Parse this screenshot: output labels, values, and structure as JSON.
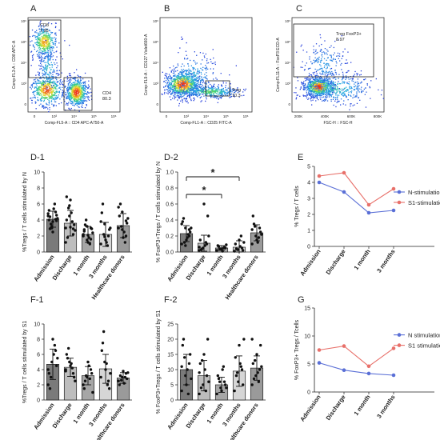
{
  "panels": {
    "A": "A",
    "B": "B",
    "C": "C",
    "D1": "D-1",
    "D2": "D-2",
    "E": "E",
    "F1": "F-1",
    "F2": "F-2",
    "G": "G"
  },
  "flow": {
    "A": {
      "ylabel": "Comp-FL3-A :: CD8 APC-A",
      "xlabel": "Comp-FL5-A :: CD4 APC-A750-A",
      "gates": [
        {
          "name": "CD8",
          "value": "7.95"
        },
        {
          "name": "CD4",
          "value": "80.3"
        }
      ],
      "yticks": [
        "10⁶",
        "10⁵",
        "10⁴",
        "10³",
        "0"
      ],
      "xticks": [
        "0",
        "10³",
        "10⁴",
        "10⁵",
        "10⁶"
      ]
    },
    "B": {
      "ylabel": "Comp-FL9-A :: CD127 Violet660-A",
      "xlabel": "Comp-FL1-A :: CD25 FITC-A",
      "gates": [
        {
          "name": "Treg",
          "value": "10.3"
        }
      ],
      "yticks": [
        "10⁶",
        "10⁵",
        "10⁴",
        "10³",
        "0"
      ],
      "xticks": [
        "0",
        "10³",
        "10⁴",
        "10⁵",
        "10⁶"
      ]
    },
    "C": {
      "ylabel": "Comp-FL11-A :: FoxP3 ECD-A",
      "xlabel": "FSC-H :: FSC-H",
      "gates": [
        {
          "name": "Treg FoxP3+",
          "value": "8.97"
        }
      ],
      "yticks": [
        "10⁶",
        "10⁵",
        "10⁴",
        "10³",
        "0"
      ],
      "xticks": [
        "200K",
        "400K",
        "600K",
        "800K"
      ]
    }
  },
  "chart_data": [
    {
      "id": "D-1",
      "type": "bar",
      "categories": [
        "Admission",
        "Discharge",
        "1 month",
        "3 months",
        "Healthcare donors"
      ],
      "values": [
        4.1,
        3.6,
        2.2,
        2.2,
        3.3
      ],
      "errors": [
        1.0,
        1.6,
        1.0,
        1.5,
        1.5
      ],
      "bar_colors": [
        "#7a7a7a",
        "#bdbdbd",
        "#a6a6a6",
        "#d6d6d6",
        "#9a9a9a"
      ],
      "ylabel": "%Tregs / T cells stimulated by N",
      "ylim": [
        0,
        10
      ],
      "yticks": [
        0,
        2,
        4,
        6,
        8,
        10
      ],
      "points": [
        [
          4.5,
          3.2,
          5.0,
          4.0,
          3.8,
          4.6,
          2.9,
          5.4,
          4.2,
          3.5,
          6.0,
          4.8,
          3.0,
          4.1,
          5.2,
          2.5,
          3.9,
          4.4
        ],
        [
          3.0,
          5.8,
          2.2,
          4.0,
          6.5,
          3.4,
          1.8,
          4.9,
          2.7,
          5.5,
          3.8,
          1.2,
          4.5,
          2.9,
          6.9,
          3.1
        ],
        [
          2.0,
          1.5,
          3.0,
          2.6,
          1.2,
          2.9,
          3.4,
          1.8,
          2.4,
          4.0,
          1.0,
          2.2,
          3.2,
          1.6,
          2.8,
          2.1
        ],
        [
          1.0,
          3.5,
          2.0,
          4.9,
          1.5,
          2.8,
          6.0,
          1.2,
          3.0,
          2.2,
          0.8,
          3.8,
          1.9
        ],
        [
          3.0,
          5.0,
          2.0,
          4.5,
          1.8,
          3.6,
          6.0,
          2.5,
          4.2,
          3.2,
          1.2,
          5.6,
          2.8,
          3.9
        ]
      ]
    },
    {
      "id": "D-2",
      "type": "bar",
      "categories": [
        "Admission",
        "Discharge",
        "1 month",
        "3 months",
        "Healthcare donors"
      ],
      "values": [
        0.23,
        0.11,
        0.05,
        0.06,
        0.24
      ],
      "errors": [
        0.1,
        0.1,
        0.03,
        0.08,
        0.1
      ],
      "bar_colors": [
        "#7a7a7a",
        "#bdbdbd",
        "#a6a6a6",
        "#d6d6d6",
        "#9a9a9a"
      ],
      "ylabel": "% FoxP3+Tregs / T cells stimulated by N",
      "ylim": [
        0,
        1.0
      ],
      "yticks": [
        0.0,
        0.2,
        0.4,
        0.6,
        0.8,
        1.0
      ],
      "significance": [
        {
          "from": 0,
          "to": 2,
          "label": "*"
        },
        {
          "from": 0,
          "to": 3,
          "label": "*"
        }
      ],
      "points": [
        [
          0.1,
          0.3,
          0.2,
          0.38,
          0.15,
          0.25,
          0.42,
          0.18,
          0.3,
          0.12,
          0.22,
          0.35,
          0.08,
          0.28
        ],
        [
          0.02,
          0.05,
          0.1,
          0.15,
          0.6,
          0.45,
          0.03,
          0.08,
          0.2,
          0.04,
          0.12,
          0.06
        ],
        [
          0.02,
          0.04,
          0.06,
          0.08,
          0.03,
          0.05,
          0.07,
          0.01,
          0.09,
          0.04,
          0.05
        ],
        [
          0.01,
          0.03,
          0.05,
          0.1,
          0.15,
          0.02,
          0.04,
          0.07,
          0.12,
          0.03,
          0.2
        ],
        [
          0.1,
          0.2,
          0.3,
          0.45,
          0.15,
          0.25,
          0.35,
          0.12,
          0.22,
          0.32,
          0.18,
          0.28
        ]
      ]
    },
    {
      "id": "E",
      "type": "line",
      "categories": [
        "Admission",
        "Discharge",
        "1 month",
        "3 months"
      ],
      "ylabel": "% Tregs / T cells",
      "ylim": [
        0,
        5
      ],
      "yticks": [
        0,
        1,
        2,
        3,
        4,
        5
      ],
      "legend_position": "right",
      "series": [
        {
          "name": "N-stimulation",
          "values": [
            4.0,
            3.4,
            2.1,
            2.25
          ],
          "color": "#5a6fd6"
        },
        {
          "name": "S1-stimulation",
          "values": [
            4.4,
            4.6,
            2.6,
            3.6
          ],
          "color": "#e8706a"
        }
      ]
    },
    {
      "id": "F-1",
      "type": "bar",
      "categories": [
        "Admission",
        "Discharge",
        "1 month",
        "3 months",
        "Healthcare donors"
      ],
      "values": [
        4.7,
        4.3,
        3.2,
        4.1,
        2.9
      ],
      "errors": [
        2.0,
        1.2,
        1.2,
        1.9,
        0.7
      ],
      "bar_colors": [
        "#7a7a7a",
        "#bdbdbd",
        "#a6a6a6",
        "#d6d6d6",
        "#9a9a9a"
      ],
      "ylabel": "%Tregs / T cells stimulated by S1",
      "ylim": [
        0,
        10
      ],
      "yticks": [
        0,
        2,
        4,
        6,
        8,
        10
      ],
      "points": [
        [
          2.0,
          5.0,
          6.5,
          3.5,
          8.0,
          4.5,
          1.5,
          6.0,
          5.5,
          3.0,
          7.2,
          4.0
        ],
        [
          4.0,
          5.0,
          3.5,
          6.0,
          4.5,
          3.0,
          5.5,
          4.8,
          2.5,
          6.8,
          4.2,
          3.8
        ],
        [
          2.0,
          3.0,
          4.0,
          1.5,
          5.0,
          3.5,
          2.5,
          4.5,
          1.0,
          3.2,
          2.8
        ],
        [
          3.0,
          5.0,
          2.5,
          6.5,
          4.0,
          1.5,
          7.5,
          4.8,
          3.5,
          9.0,
          2.0
        ],
        [
          2.5,
          3.0,
          3.5,
          2.0,
          3.8,
          2.8,
          3.2,
          2.2,
          3.6,
          2.6,
          3.0
        ]
      ]
    },
    {
      "id": "F-2",
      "type": "bar",
      "categories": [
        "Admission",
        "Discharge",
        "1 month",
        "3 months",
        "Healthcare donors"
      ],
      "values": [
        10,
        8,
        5,
        9.5,
        10.5
      ],
      "errors": [
        5,
        5,
        2.5,
        5,
        4
      ],
      "bar_colors": [
        "#7a7a7a",
        "#bdbdbd",
        "#a6a6a6",
        "#d6d6d6",
        "#9a9a9a"
      ],
      "ylabel": "% FoxP3+Tregs / T cells stimulated by S1",
      "ylim": [
        0,
        25
      ],
      "yticks": [
        0,
        5,
        10,
        15,
        20,
        25
      ],
      "points": [
        [
          3,
          8,
          12,
          18,
          5,
          15,
          20,
          10,
          7,
          14,
          2,
          11
        ],
        [
          2,
          5,
          8,
          12,
          15,
          20,
          4,
          10,
          6,
          13,
          3,
          9
        ],
        [
          2,
          4,
          6,
          8,
          3,
          5,
          7,
          10,
          4,
          6,
          11
        ],
        [
          3,
          6,
          10,
          14,
          18,
          5,
          8,
          12,
          20,
          9,
          11
        ],
        [
          5,
          8,
          10,
          12,
          15,
          18,
          7,
          9,
          11,
          13,
          6,
          20
        ]
      ]
    },
    {
      "id": "G",
      "type": "line",
      "categories": [
        "Admission",
        "Discharge",
        "1 month",
        "3 months"
      ],
      "ylabel": "% FoxP3+ Tregs / Tcells",
      "ylim": [
        0,
        15
      ],
      "yticks": [
        0,
        5,
        10,
        15
      ],
      "legend_position": "right",
      "series": [
        {
          "name": "N stimulation",
          "values": [
            5.2,
            3.9,
            3.3,
            3.0
          ],
          "color": "#5a6fd6"
        },
        {
          "name": "S1 stimulation",
          "values": [
            7.5,
            8.2,
            4.6,
            7.8
          ],
          "color": "#e8706a"
        }
      ]
    }
  ]
}
